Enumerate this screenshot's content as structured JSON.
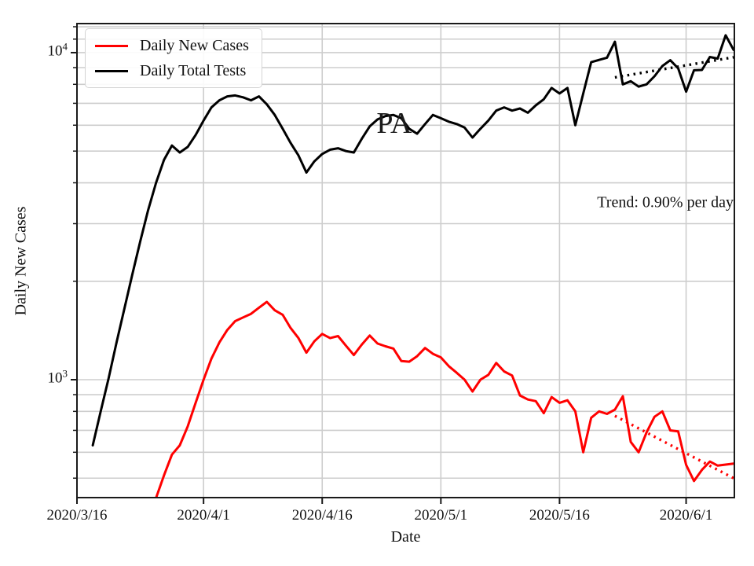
{
  "figure": {
    "background": "#ffffff"
  },
  "chart_data": {
    "type": "line",
    "title": "",
    "xlabel": "Date",
    "ylabel": "Daily New Cases",
    "yscale": "log",
    "ylim": [
      436,
      12270
    ],
    "xlim_days": [
      0,
      83.1
    ],
    "x0_date": "2020/3/16",
    "grid": "both",
    "grid_color": "#cdcdcd",
    "spine_color": "#1a1a1a",
    "x_ticks": [
      {
        "label": "2020/3/16",
        "day": 0
      },
      {
        "label": "2020/4/1",
        "day": 16
      },
      {
        "label": "2020/4/16",
        "day": 31
      },
      {
        "label": "2020/5/1",
        "day": 46
      },
      {
        "label": "2020/5/16",
        "day": 61
      },
      {
        "label": "2020/6/1",
        "day": 77
      }
    ],
    "y_ticks": [
      {
        "base": "10",
        "exp": "3",
        "value": 1000
      },
      {
        "base": "10",
        "exp": "4",
        "value": 10000
      }
    ],
    "y_minor_values": [
      500,
      600,
      700,
      800,
      900,
      2000,
      3000,
      4000,
      5000,
      6000,
      7000,
      8000,
      9000,
      11000,
      12000
    ],
    "legend": {
      "position": "upper left",
      "items": [
        {
          "label": "Daily New Cases",
          "color": "#ff0000"
        },
        {
          "label": "Daily Total Tests",
          "color": "#000000"
        }
      ]
    },
    "series": [
      {
        "name": "Daily New Cases",
        "color": "#ff0000",
        "start_date": "2020/3/26",
        "start_day": 10,
        "values": [
          435,
          510,
          590,
          630,
          720,
          850,
          1000,
          1160,
          1300,
          1420,
          1510,
          1550,
          1590,
          1660,
          1730,
          1630,
          1580,
          1440,
          1340,
          1210,
          1310,
          1380,
          1340,
          1360,
          1270,
          1190,
          1280,
          1365,
          1290,
          1265,
          1245,
          1140,
          1135,
          1180,
          1250,
          1200,
          1170,
          1100,
          1050,
          1000,
          920,
          1000,
          1035,
          1125,
          1060,
          1030,
          895,
          870,
          860,
          790,
          885,
          850,
          865,
          800,
          600,
          765,
          800,
          786,
          810,
          890,
          645,
          600,
          690,
          770,
          800,
          700,
          695,
          549,
          490,
          530,
          562,
          546,
          550,
          554
        ]
      },
      {
        "name": "Daily Total Tests",
        "color": "#000000",
        "start_date": "2020/3/18",
        "start_day": 2,
        "values": [
          630,
          800,
          1010,
          1300,
          1650,
          2100,
          2650,
          3300,
          4000,
          4700,
          5200,
          4950,
          5150,
          5600,
          6200,
          6800,
          7150,
          7350,
          7400,
          7300,
          7150,
          7350,
          6950,
          6450,
          5850,
          5300,
          4850,
          4300,
          4650,
          4900,
          5050,
          5100,
          5000,
          4950,
          5450,
          5950,
          6250,
          6400,
          6450,
          6300,
          5850,
          5650,
          6050,
          6450,
          6300,
          6150,
          6050,
          5900,
          5500,
          5850,
          6200,
          6650,
          6800,
          6650,
          6750,
          6550,
          6900,
          7200,
          7800,
          7500,
          7800,
          6000,
          7500,
          9350,
          9500,
          9650,
          10800,
          8000,
          8180,
          7870,
          8000,
          8470,
          9100,
          9480,
          8950,
          7600,
          8830,
          8850,
          9700,
          9590,
          11300,
          10200
        ]
      }
    ],
    "trend_lines": [
      {
        "series": "Daily New Cases",
        "color": "#ff0000",
        "style": "dotted",
        "start_day": 68,
        "start_value": 775,
        "end_day": 83,
        "end_value": 500
      },
      {
        "series": "Daily Total Tests",
        "color": "#000000",
        "style": "dotted",
        "start_day": 68,
        "start_value": 8400,
        "end_day": 83,
        "end_value": 9680
      }
    ],
    "annotations": [
      {
        "text": "PA",
        "day": 40.1,
        "value": 6070,
        "align": "center",
        "kind": "state"
      },
      {
        "text": "Trend: 0.90% per day",
        "day": 83.0,
        "value": 3470,
        "align": "right",
        "kind": "trend"
      }
    ]
  }
}
